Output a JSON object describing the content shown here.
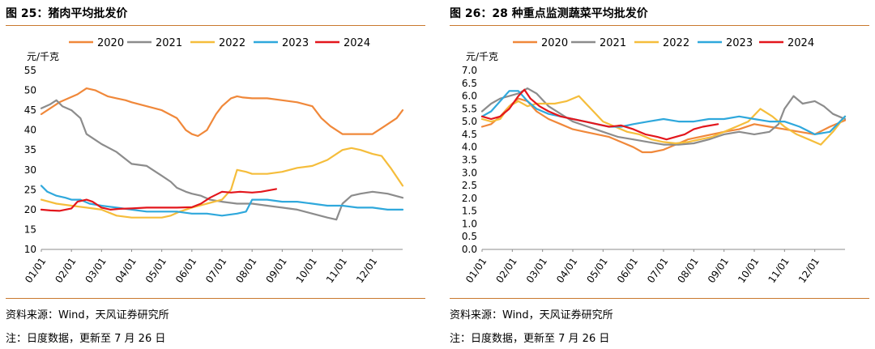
{
  "chart_data": [
    {
      "type": "line",
      "title": "图 25：猪肉平均批发价",
      "ylabel": "元/千克",
      "xlabel": "",
      "ylim": [
        10,
        55
      ],
      "yticks": [
        10,
        15,
        20,
        25,
        30,
        35,
        40,
        45,
        50,
        55
      ],
      "x_ticks": [
        "01/01",
        "02/01",
        "03/01",
        "04/01",
        "05/01",
        "06/01",
        "07/01",
        "08/01",
        "09/01",
        "10/01",
        "11/01",
        "12/01"
      ],
      "grid": false,
      "legend_position": "top",
      "series": [
        {
          "name": "2020",
          "color": "#f0883a",
          "x": [
            0,
            0.3,
            0.6,
            0.9,
            1.2,
            1.5,
            1.8,
            2.2,
            2.5,
            2.8,
            3.0,
            3.5,
            4.0,
            4.5,
            4.8,
            5.0,
            5.2,
            5.5,
            5.8,
            6.0,
            6.3,
            6.5,
            6.7,
            7.0,
            7.5,
            8.0,
            8.5,
            9.0,
            9.3,
            9.6,
            10.0,
            10.3,
            10.6,
            11.0,
            11.4,
            11.8,
            12.0
          ],
          "y": [
            44,
            45.5,
            47,
            48,
            49,
            50.5,
            50,
            48.5,
            48,
            47.5,
            47,
            46,
            45,
            43,
            40,
            39,
            38.5,
            40,
            44,
            46,
            48,
            48.5,
            48.2,
            48,
            48,
            47.5,
            47,
            46,
            43,
            41,
            39,
            39,
            39,
            39,
            41,
            43,
            45
          ]
        },
        {
          "name": "2021",
          "color": "#8c8c8c",
          "x": [
            0,
            0.3,
            0.5,
            0.7,
            1.0,
            1.3,
            1.5,
            1.8,
            2.0,
            2.5,
            3.0,
            3.5,
            3.8,
            4.0,
            4.3,
            4.5,
            4.8,
            5.0,
            5.3,
            5.6,
            6.0,
            6.5,
            7.0,
            7.5,
            8.0,
            8.5,
            9.0,
            9.5,
            9.8,
            10.0,
            10.3,
            10.6,
            11.0,
            11.5,
            12.0
          ],
          "y": [
            45.5,
            46.5,
            47.5,
            46,
            45,
            43,
            39,
            37.5,
            36.5,
            34.5,
            31.5,
            31,
            29.5,
            28.5,
            27,
            25.5,
            24.5,
            24,
            23.5,
            22.5,
            22,
            21.5,
            21.5,
            21,
            20.5,
            20,
            19,
            18,
            17.5,
            21.5,
            23.5,
            24,
            24.5,
            24,
            23
          ]
        },
        {
          "name": "2022",
          "color": "#f5bd3b",
          "x": [
            0,
            0.5,
            1.0,
            1.5,
            2.0,
            2.5,
            3.0,
            3.5,
            4.0,
            4.3,
            4.6,
            5.0,
            5.5,
            6.0,
            6.3,
            6.5,
            6.8,
            7.0,
            7.5,
            8.0,
            8.5,
            9.0,
            9.5,
            10.0,
            10.3,
            10.6,
            11.0,
            11.3,
            11.6,
            12.0
          ],
          "y": [
            22.5,
            21.5,
            21,
            20.5,
            20,
            18.5,
            18,
            18,
            18,
            18.5,
            19.5,
            20.5,
            21.5,
            22.5,
            25,
            30,
            29.5,
            29,
            29,
            29.5,
            30.5,
            31,
            32.5,
            35,
            35.5,
            35,
            34,
            33.5,
            30.5,
            26
          ]
        },
        {
          "name": "2023",
          "color": "#2fa8dc",
          "x": [
            0,
            0.2,
            0.5,
            0.8,
            1.0,
            1.3,
            1.6,
            2.0,
            2.5,
            3.0,
            3.5,
            4.0,
            4.5,
            5.0,
            5.5,
            6.0,
            6.5,
            6.8,
            7.0,
            7.5,
            8.0,
            8.5,
            9.0,
            9.5,
            10.0,
            10.5,
            11.0,
            11.5,
            12.0
          ],
          "y": [
            26,
            24.5,
            23.5,
            23,
            22.5,
            22.5,
            21.5,
            21,
            20.5,
            20,
            19.5,
            19.5,
            19.5,
            19,
            19,
            18.5,
            19,
            19.5,
            22.5,
            22.5,
            22,
            22,
            21.5,
            21,
            21,
            20.5,
            20.5,
            20,
            20
          ]
        },
        {
          "name": "2024",
          "color": "#e3161c",
          "x": [
            0,
            0.3,
            0.6,
            1.0,
            1.2,
            1.5,
            1.7,
            2.0,
            2.3,
            2.6,
            3.0,
            3.5,
            4.0,
            4.5,
            5.0,
            5.3,
            5.6,
            6.0,
            6.3,
            6.6,
            7.0,
            7.3,
            7.8
          ],
          "y": [
            20,
            19.8,
            19.7,
            20.3,
            22,
            22.5,
            22,
            20.5,
            20,
            20.2,
            20.3,
            20.5,
            20.5,
            20.5,
            20.6,
            21.5,
            23,
            24.5,
            24.3,
            24.5,
            24.3,
            24.5,
            25.2
          ]
        }
      ]
    },
    {
      "type": "line",
      "title": "图 26：28 种重点监测蔬菜平均批发价",
      "ylabel": "元/千克",
      "xlabel": "",
      "ylim": [
        0,
        7
      ],
      "yticks": [
        0,
        0.5,
        1,
        1.5,
        2,
        2.5,
        3,
        3.5,
        4,
        4.5,
        5,
        5.5,
        6,
        6.5,
        7
      ],
      "x_ticks": [
        "01/01",
        "02/01",
        "03/01",
        "04/01",
        "05/01",
        "06/01",
        "07/01",
        "08/01",
        "09/01",
        "10/01",
        "11/01",
        "12/01"
      ],
      "grid": false,
      "legend_position": "top",
      "series": [
        {
          "name": "2020",
          "color": "#f0883a",
          "x": [
            0,
            0.3,
            0.6,
            0.9,
            1.2,
            1.5,
            1.8,
            2.2,
            2.6,
            3.0,
            3.4,
            3.8,
            4.2,
            4.6,
            5.0,
            5.3,
            5.6,
            6.0,
            6.4,
            6.8,
            7.2,
            7.6,
            8.0,
            8.5,
            9.0,
            9.5,
            10.0,
            10.5,
            11.0,
            11.5,
            12.0
          ],
          "y": [
            4.8,
            4.9,
            5.2,
            5.6,
            5.9,
            5.8,
            5.4,
            5.1,
            4.9,
            4.7,
            4.6,
            4.5,
            4.4,
            4.2,
            4.0,
            3.8,
            3.8,
            3.9,
            4.1,
            4.3,
            4.4,
            4.5,
            4.6,
            4.7,
            4.9,
            4.8,
            4.7,
            4.6,
            4.5,
            4.8,
            5.05
          ]
        },
        {
          "name": "2021",
          "color": "#8c8c8c",
          "x": [
            0,
            0.3,
            0.6,
            0.9,
            1.2,
            1.5,
            1.8,
            2.2,
            2.6,
            3.0,
            3.5,
            4.0,
            4.5,
            5.0,
            5.5,
            6.0,
            6.5,
            7.0,
            7.5,
            8.0,
            8.5,
            9.0,
            9.5,
            9.8,
            10.0,
            10.3,
            10.6,
            11.0,
            11.3,
            11.6,
            12.0
          ],
          "y": [
            5.4,
            5.7,
            5.9,
            6.0,
            6.1,
            6.3,
            6.1,
            5.6,
            5.3,
            5.0,
            4.8,
            4.6,
            4.4,
            4.3,
            4.2,
            4.1,
            4.1,
            4.15,
            4.3,
            4.5,
            4.6,
            4.5,
            4.6,
            4.9,
            5.5,
            6.0,
            5.7,
            5.8,
            5.6,
            5.3,
            5.1
          ]
        },
        {
          "name": "2022",
          "color": "#f5bd3b",
          "x": [
            0,
            0.3,
            0.6,
            0.9,
            1.2,
            1.5,
            1.8,
            2.1,
            2.4,
            2.8,
            3.2,
            3.6,
            4.0,
            4.4,
            4.8,
            5.2,
            5.6,
            6.0,
            6.4,
            6.8,
            7.2,
            7.6,
            8.0,
            8.4,
            8.8,
            9.2,
            9.6,
            10.0,
            10.4,
            10.8,
            11.2,
            11.6,
            12.0
          ],
          "y": [
            5.1,
            5.0,
            5.1,
            5.6,
            5.8,
            5.6,
            5.7,
            5.7,
            5.7,
            5.8,
            6.0,
            5.5,
            5.0,
            4.8,
            4.6,
            4.5,
            4.3,
            4.2,
            4.15,
            4.2,
            4.3,
            4.4,
            4.6,
            4.8,
            5.0,
            5.5,
            5.2,
            4.8,
            4.5,
            4.3,
            4.1,
            4.6,
            5.2
          ]
        },
        {
          "name": "2023",
          "color": "#2fa8dc",
          "x": [
            0,
            0.3,
            0.6,
            0.9,
            1.2,
            1.5,
            1.8,
            2.2,
            2.6,
            3.0,
            3.4,
            3.8,
            4.2,
            4.6,
            5.0,
            5.5,
            6.0,
            6.5,
            7.0,
            7.5,
            8.0,
            8.5,
            9.0,
            9.5,
            10.0,
            10.5,
            11.0,
            11.5,
            12.0
          ],
          "y": [
            5.2,
            5.4,
            5.8,
            6.2,
            6.2,
            5.8,
            5.5,
            5.3,
            5.2,
            5.1,
            5.0,
            4.9,
            4.8,
            4.8,
            4.9,
            5.0,
            5.1,
            5.0,
            5.0,
            5.1,
            5.1,
            5.2,
            5.1,
            5.0,
            5.0,
            4.8,
            4.5,
            4.6,
            5.2
          ]
        },
        {
          "name": "2024",
          "color": "#e3161c",
          "x": [
            0,
            0.3,
            0.6,
            0.9,
            1.2,
            1.4,
            1.6,
            1.9,
            2.2,
            2.6,
            3.0,
            3.4,
            3.8,
            4.2,
            4.6,
            5.0,
            5.4,
            5.8,
            6.1,
            6.4,
            6.7,
            7.0,
            7.3,
            7.8
          ],
          "y": [
            5.2,
            5.1,
            5.2,
            5.5,
            6.0,
            6.25,
            5.9,
            5.6,
            5.4,
            5.2,
            5.1,
            5.0,
            4.9,
            4.8,
            4.85,
            4.7,
            4.5,
            4.4,
            4.3,
            4.4,
            4.5,
            4.7,
            4.8,
            4.9
          ]
        }
      ]
    }
  ],
  "panels": [
    {
      "source": "资料来源：Wind，天风证券研究所",
      "note": "注：日度数据，更新至 7 月 26 日"
    },
    {
      "source": "资料来源：Wind，天风证券研究所",
      "note": "注：日度数据，更新至 7 月 26 日"
    }
  ]
}
